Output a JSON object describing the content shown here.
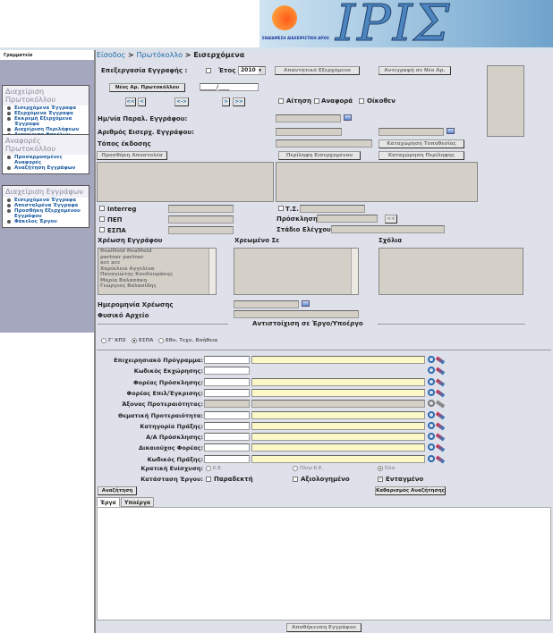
{
  "header": {
    "logo_text": "ΙΡΙΣ",
    "logo_subtitle": "ΕΝΔΙΑΜΕΣΗ ΔΙΑΧΕΙΡΙΣΤΙΚΗ ΑΡΧΗ"
  },
  "sidebar": {
    "title": "Γραμματεία",
    "sections": [
      {
        "title": "Διαχείριση Πρωτοκόλλου",
        "items": [
          "Εισερχόμενα Έγγραφα",
          "Εξερχόμενα Έγγραφα",
          "Εκκρεμή Εξερχόμενα Έγγραφα",
          "Διαχείριση Περιλήψεων",
          "Διαχείριση Φακέλων"
        ]
      },
      {
        "title": "Αναφορές Πρωτοκόλλου",
        "items": [
          "Προσαρμοσμένες Αναφορές",
          "Αναζήτηση Εγγράφων"
        ]
      },
      {
        "title": "Διαχείριση Εγγράφων",
        "items": [
          "Εισερχόμενα Έγγραφα",
          "Απεσταλμένα Έγγραφα",
          "Προσθήκη Εξερχομένου Εγγράφου",
          "Φάκελος Έργου"
        ]
      }
    ]
  },
  "breadcrumb": {
    "home": "Είσοδος",
    "section": "Πρωτόκολλο",
    "current": "Εισερχόμενα",
    "sep": " > "
  },
  "form": {
    "edit_label": "Επεξεργασία Εγγραφής :",
    "year_label": "Έτος",
    "year_value": "2010",
    "reply_outgoing": "Απαντητικό Εξερχόμενο",
    "copy_new": "Αντιγραφή σε Νέο Αρ.",
    "new_number": "Νέος Αρ. Πρωτοκόλλου",
    "number_value": "______/____",
    "nav": [
      "<<",
      "<",
      "<->",
      ">",
      ">>"
    ],
    "checks": [
      "Αίτηση",
      "Αναφορά",
      "Οίκοθεν"
    ],
    "date_label": "Ημ/νία Παραλ. Εγγράφου:",
    "incoming_no_label": "Αριθμός Εισερχ. Εγγράφου:",
    "place_label": "Τόπος έκδοσης",
    "save_place": "Καταχώρηση Τοποθεσίας",
    "add_sender": "Προσθήκη Αποστολέα",
    "incoming_summary": "Περίληψη Εισερχομένου",
    "save_summary": "Καταχώρηση Περίληψης",
    "interreg": "Interreg",
    "pep": "ΠΕΠ",
    "espa": "ΕΣΠΑ",
    "ts": "Τ.Σ.",
    "call_label": "Πρόσκληση",
    "call_btn": "<<",
    "stage_label": "Στάδιο Ελέγχου",
    "charge_label": "Χρέωση Εγγράφου",
    "charged_label": "Χρεωμένο Σε",
    "comments_label": "Σχόλια",
    "users": [
      "finalHold finalHold",
      "partner partner",
      "acc acc",
      "Χαρίκλεια Αγγελίνα",
      "Παναγιώτης Κουδουμάκης",
      "Μαρία Βαλασάκη",
      "Γεώργιος Βαλασίδης"
    ],
    "charge_date_label": "Ημερομηνία Χρέωσης",
    "physical_label": "Φυσικό Αρχείο",
    "mapping_title": "Αντιστοίχιση σε Έργο/Υποέργο"
  },
  "search": {
    "programs": [
      {
        "label": "Γ' ΚΠΣ",
        "selected": false
      },
      {
        "label": "ΕΣΠΑ",
        "selected": true
      },
      {
        "label": "Εθν. Τεχν. Βοήθεια",
        "selected": false
      }
    ],
    "rows": [
      {
        "label": "Επιχειρησιακό Πρόγραμμα:",
        "type": "full"
      },
      {
        "label": "Κωδικός Εκχώρησης:",
        "type": "code"
      },
      {
        "label": "Φορέας Πρόσκλησης:",
        "type": "full"
      },
      {
        "label": "Φορέας Επιλ/Έγκρισης:",
        "type": "full"
      },
      {
        "label": "Άξονας Προτεραιότητας:",
        "type": "disabled"
      },
      {
        "label": "Θεματική Προτεραιότητα:",
        "type": "full"
      },
      {
        "label": "Κατηγορία Πράξης:",
        "type": "full"
      },
      {
        "label": "Α/Α Πρόσκλησης:",
        "type": "full"
      },
      {
        "label": "Δικαιούχος Φορέας:",
        "type": "full"
      },
      {
        "label": "Κωδικός Πράξης:",
        "type": "full"
      }
    ],
    "aid_label": "Κρατική Ενίσχυση:",
    "aid_options": [
      {
        "label": "Κ.Ε.",
        "selected": false
      },
      {
        "label": "Πλην Κ.Ε.",
        "selected": false
      },
      {
        "label": "Όλα",
        "selected": true
      }
    ],
    "status_label": "Κατάσταση Έργου:",
    "status_options": [
      {
        "label": "Παραδεκτή",
        "checked": false
      },
      {
        "label": "Αξιολογημένο",
        "checked": false
      },
      {
        "label": "Ενταγμένο",
        "checked": true
      }
    ],
    "search_btn": "Αναζήτηση",
    "clear_btn": "Καθαρισμός Αναζήτησης"
  },
  "tabs": [
    {
      "label": "Έργα",
      "active": true
    },
    {
      "label": "Υποέργα",
      "active": false
    }
  ],
  "footer": {
    "save_btn": "Αποθήκευση Εγγράφου"
  }
}
